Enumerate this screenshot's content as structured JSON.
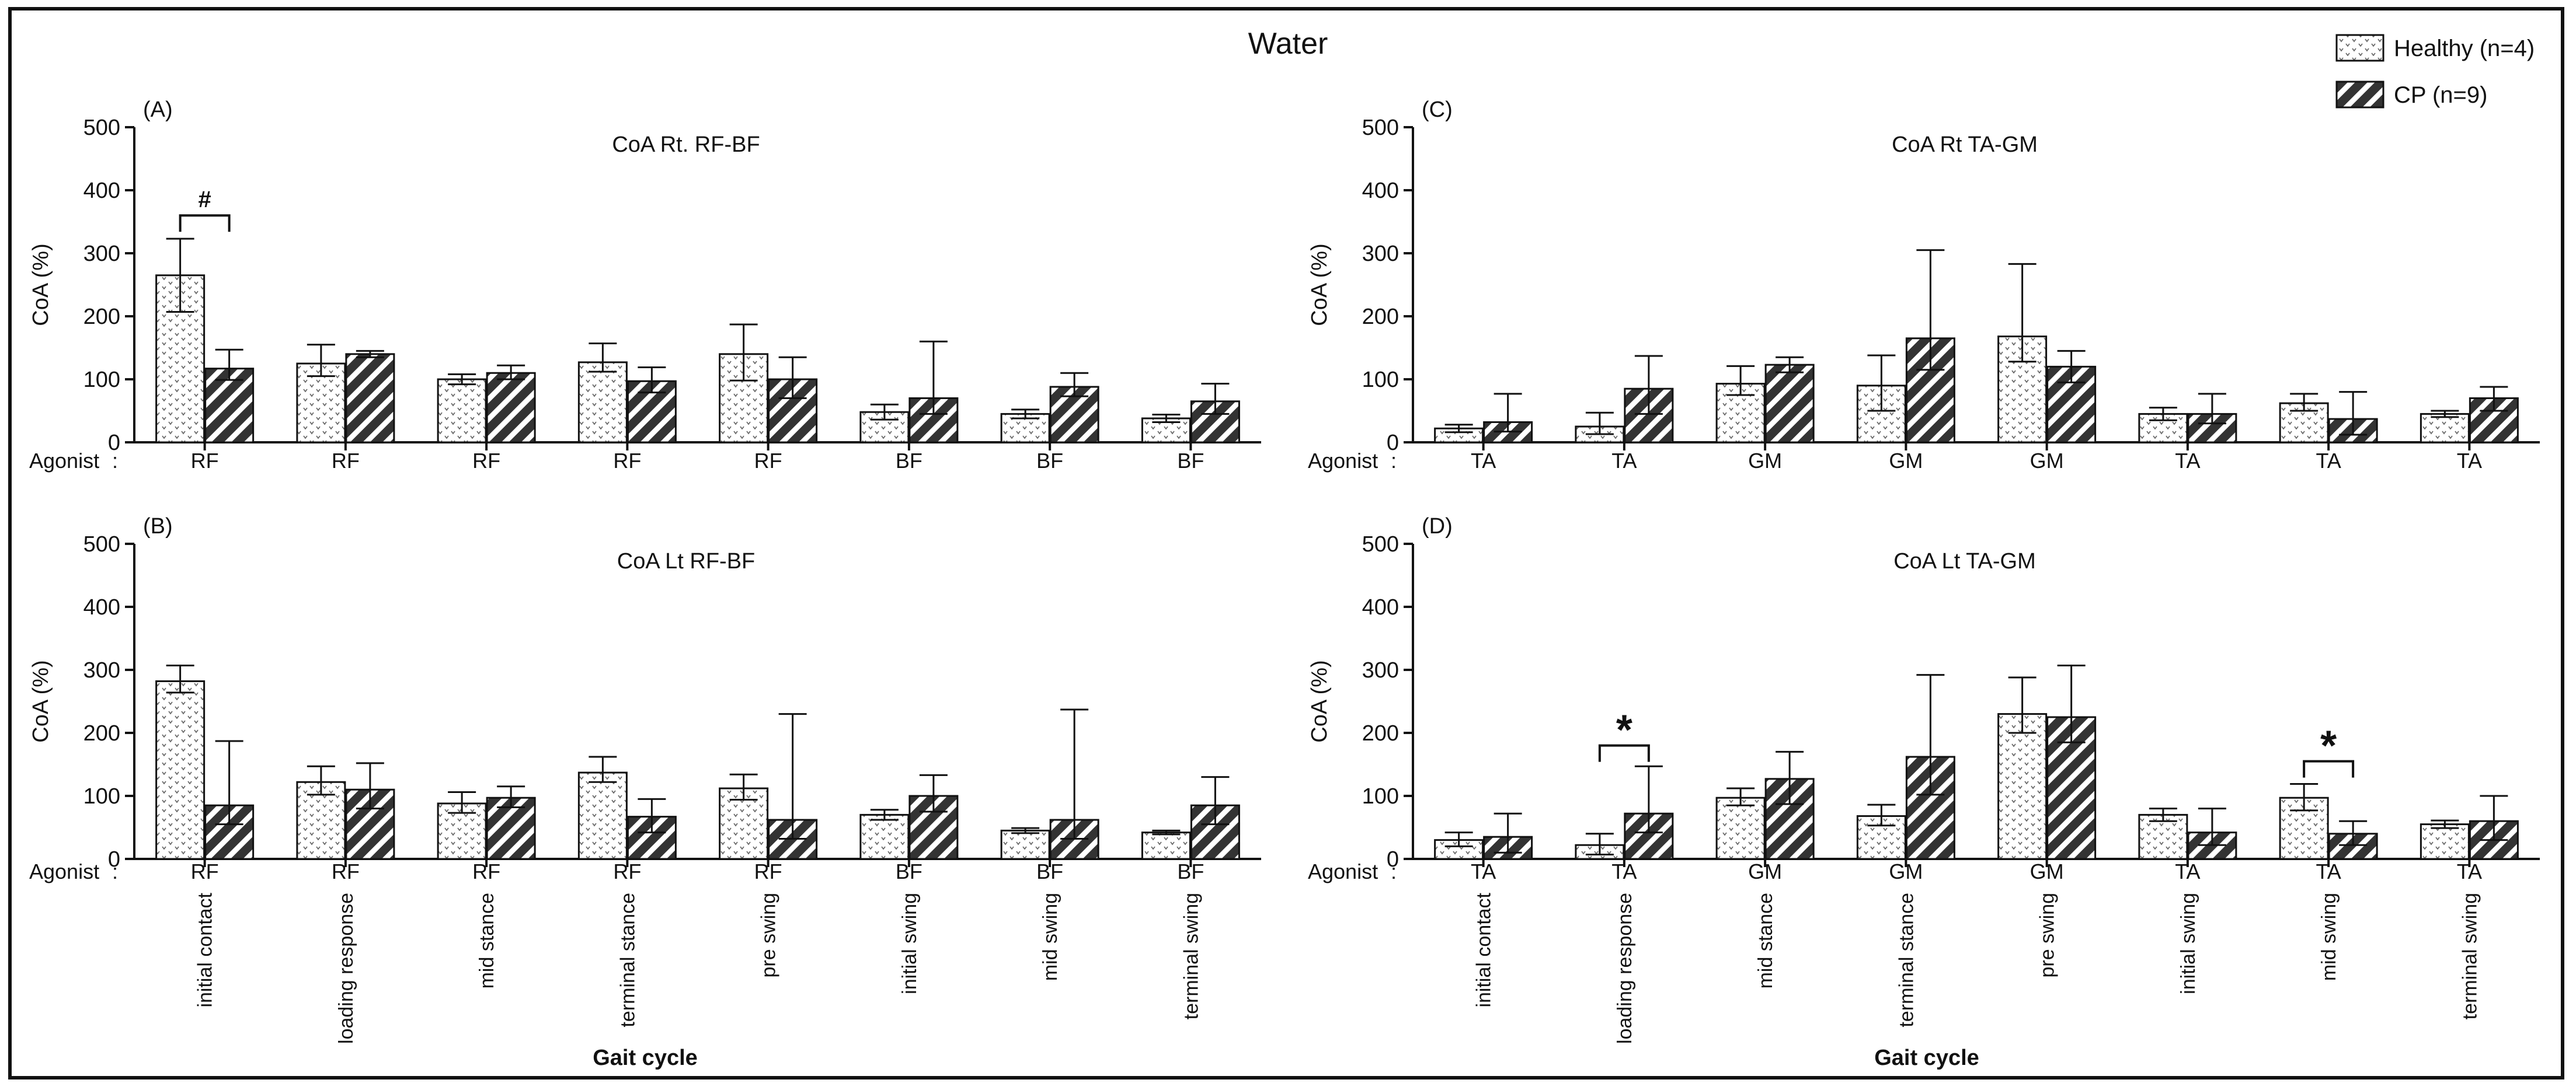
{
  "figure": {
    "title": "Water",
    "x_title": "Gait cycle",
    "agonist_label": "Agonist",
    "agonist_colon": ":"
  },
  "legend": [
    {
      "name": "Healthy (n=4)",
      "pattern": "dots"
    },
    {
      "name": "CP (n=9)",
      "pattern": "hatch"
    }
  ],
  "chart_data": [
    {
      "id": "A",
      "type": "bar",
      "panel_label": "(A)",
      "title": "CoA  Rt. RF-BF",
      "ylabel": "CoA (%)",
      "ylim": [
        0,
        500
      ],
      "yticks": [
        0,
        100,
        200,
        300,
        400,
        500
      ],
      "categories": [
        "initial contact",
        "loading response",
        "mid stance",
        "terminal stance",
        "pre swing",
        "initial swing",
        "mid swing",
        "terminal swing"
      ],
      "agonists": [
        "RF",
        "RF",
        "RF",
        "RF",
        "RF",
        "BF",
        "BF",
        "BF"
      ],
      "show_category_labels": false,
      "series": [
        {
          "name": "Healthy (n=4)",
          "values": [
            265,
            125,
            100,
            127,
            140,
            48,
            45,
            38
          ],
          "err_low": [
            58,
            20,
            8,
            15,
            42,
            12,
            7,
            6
          ],
          "err_high": [
            58,
            30,
            8,
            30,
            47,
            12,
            7,
            6
          ]
        },
        {
          "name": "CP (n=9)",
          "values": [
            117,
            140,
            110,
            97,
            100,
            70,
            88,
            65
          ],
          "err_low": [
            18,
            5,
            10,
            18,
            30,
            25,
            15,
            20
          ],
          "err_high": [
            30,
            5,
            12,
            22,
            35,
            90,
            22,
            28
          ]
        }
      ],
      "annotations": [
        {
          "text": "#",
          "from": 0,
          "to": 0,
          "y": 360
        }
      ]
    },
    {
      "id": "B",
      "type": "bar",
      "panel_label": "(B)",
      "title": "CoA  Lt RF-BF",
      "ylabel": "CoA (%)",
      "ylim": [
        0,
        500
      ],
      "yticks": [
        0,
        100,
        200,
        300,
        400,
        500
      ],
      "categories": [
        "initial contact",
        "loading response",
        "mid stance",
        "terminal stance",
        "pre swing",
        "initial swing",
        "mid swing",
        "terminal swing"
      ],
      "agonists": [
        "RF",
        "RF",
        "RF",
        "RF",
        "RF",
        "BF",
        "BF",
        "BF"
      ],
      "show_category_labels": true,
      "series": [
        {
          "name": "Healthy (n=4)",
          "values": [
            282,
            122,
            88,
            137,
            112,
            70,
            45,
            42
          ],
          "err_low": [
            18,
            20,
            15,
            15,
            18,
            8,
            4,
            3
          ],
          "err_high": [
            25,
            25,
            18,
            25,
            22,
            8,
            4,
            3
          ]
        },
        {
          "name": "CP (n=9)",
          "values": [
            85,
            110,
            97,
            67,
            62,
            100,
            62,
            85
          ],
          "err_low": [
            30,
            30,
            15,
            25,
            30,
            25,
            30,
            30
          ],
          "err_high": [
            102,
            42,
            18,
            28,
            168,
            33,
            175,
            45
          ]
        }
      ],
      "annotations": []
    },
    {
      "id": "C",
      "type": "bar",
      "panel_label": "(C)",
      "title": "CoA  Rt TA-GM",
      "ylabel": "CoA (%)",
      "ylim": [
        0,
        500
      ],
      "yticks": [
        0,
        100,
        200,
        300,
        400,
        500
      ],
      "categories": [
        "initial contact",
        "loading response",
        "mid stance",
        "terminal stance",
        "pre swing",
        "initial swing",
        "mid swing",
        "terminal swing"
      ],
      "agonists": [
        "TA",
        "TA",
        "GM",
        "GM",
        "GM",
        "TA",
        "TA",
        "TA"
      ],
      "show_category_labels": false,
      "series": [
        {
          "name": "Healthy (n=4)",
          "values": [
            22,
            25,
            93,
            90,
            168,
            45,
            62,
            45
          ],
          "err_low": [
            6,
            12,
            18,
            40,
            40,
            10,
            12,
            5
          ],
          "err_high": [
            6,
            22,
            28,
            48,
            115,
            10,
            15,
            5
          ]
        },
        {
          "name": "CP (n=9)",
          "values": [
            32,
            85,
            123,
            165,
            120,
            45,
            37,
            70
          ],
          "err_low": [
            15,
            40,
            12,
            50,
            25,
            15,
            25,
            20
          ],
          "err_high": [
            45,
            52,
            12,
            140,
            25,
            32,
            43,
            18
          ]
        }
      ],
      "annotations": []
    },
    {
      "id": "D",
      "type": "bar",
      "panel_label": "(D)",
      "title": "CoA  Lt TA-GM",
      "ylabel": "CoA (%)",
      "ylim": [
        0,
        500
      ],
      "yticks": [
        0,
        100,
        200,
        300,
        400,
        500
      ],
      "categories": [
        "initial contact",
        "loading response",
        "mid stance",
        "terminal stance",
        "pre swing",
        "initial swing",
        "mid swing",
        "terminal swing"
      ],
      "agonists": [
        "TA",
        "TA",
        "GM",
        "GM",
        "GM",
        "TA",
        "TA",
        "TA"
      ],
      "show_category_labels": true,
      "series": [
        {
          "name": "Healthy (n=4)",
          "values": [
            30,
            22,
            97,
            68,
            230,
            70,
            97,
            55
          ],
          "err_low": [
            10,
            15,
            12,
            15,
            30,
            10,
            20,
            6
          ],
          "err_high": [
            12,
            18,
            15,
            18,
            58,
            10,
            22,
            6
          ]
        },
        {
          "name": "CP (n=9)",
          "values": [
            35,
            72,
            127,
            162,
            225,
            42,
            40,
            60
          ],
          "err_low": [
            25,
            30,
            40,
            60,
            40,
            20,
            18,
            30
          ],
          "err_high": [
            37,
            75,
            43,
            130,
            82,
            38,
            20,
            40
          ]
        }
      ],
      "annotations": [
        {
          "text": "*",
          "from": 1,
          "to": 1,
          "y": 180
        },
        {
          "text": "*",
          "from": 6,
          "to": 6,
          "y": 155
        }
      ]
    }
  ]
}
